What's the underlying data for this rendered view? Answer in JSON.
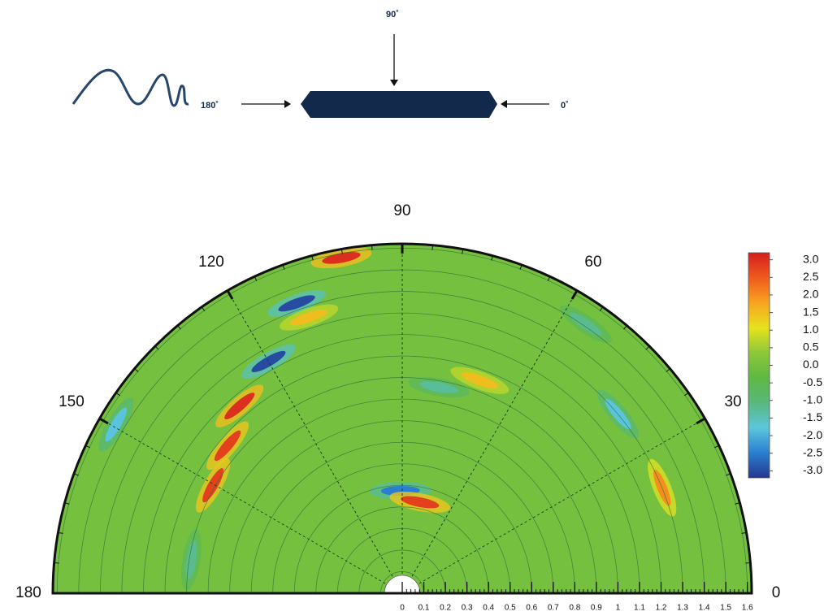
{
  "diagram": {
    "label_top": "90˚",
    "label_left": "180˚",
    "label_right": "0˚"
  },
  "chart_data": {
    "type": "polar-heatmap",
    "thetalim": [
      0,
      180
    ],
    "thetaticks": [
      0,
      30,
      60,
      90,
      120,
      150,
      180
    ],
    "rlim": [
      0,
      1.62
    ],
    "rticks": [
      0,
      0.1,
      0.2,
      0.3,
      0.4,
      0.5,
      0.6,
      0.7,
      0.8,
      0.9,
      1,
      1.1,
      1.2,
      1.3,
      1.4,
      1.5,
      1.6
    ],
    "clim": [
      -3.2,
      3.2
    ],
    "cticks": [
      {
        "value": 3,
        "label": "3.0"
      },
      2.5,
      {
        "value": 2,
        "label": "2.0"
      },
      1.5,
      {
        "value": 1,
        "label": "1.0"
      },
      0.5,
      {
        "value": 0,
        "label": "0.0"
      },
      -0.5,
      {
        "value": -1,
        "label": "-1.0"
      },
      -1.5,
      {
        "value": -2,
        "label": "-2.0"
      },
      -2.5,
      {
        "value": -3,
        "label": "-3.0"
      }
    ],
    "colormap": [
      "#24368f",
      "#2a7fd0",
      "#5cc6dc",
      "#58b87c",
      "#5fb843",
      "#8cc83a",
      "#e6e21e",
      "#f7a51f",
      "#ef5a1e",
      "#d41e1e"
    ],
    "background_value": 0,
    "grid": true,
    "hotspots": [
      {
        "theta": 100.3,
        "r": 1.58,
        "value": 3
      },
      {
        "theta": 110,
        "r": 1.43,
        "value": -3
      },
      {
        "theta": 108.7,
        "r": 1.35,
        "value": 1.5
      },
      {
        "theta": 120,
        "r": 1.24,
        "value": -3
      },
      {
        "theta": 131,
        "r": 1.15,
        "value": 3
      },
      {
        "theta": 139.8,
        "r": 1.06,
        "value": 2.8
      },
      {
        "theta": 150.3,
        "r": 1.01,
        "value": 2.8
      },
      {
        "theta": 149.5,
        "r": 1.54,
        "value": -1.8
      },
      {
        "theta": 91,
        "r": 0.475,
        "value": -2.5
      },
      {
        "theta": 79,
        "r": 0.43,
        "value": 2.8
      },
      {
        "theta": 79.9,
        "r": 0.97,
        "value": -1.3
      },
      {
        "theta": 70,
        "r": 1.05,
        "value": 1.5
      },
      {
        "theta": 39.7,
        "r": 1.3,
        "value": -1.8
      },
      {
        "theta": 22.1,
        "r": 1.3,
        "value": 2
      },
      {
        "theta": 55.7,
        "r": 1.51,
        "value": -1.2
      },
      {
        "theta": 171,
        "r": 0.99,
        "value": -1.2
      }
    ]
  }
}
